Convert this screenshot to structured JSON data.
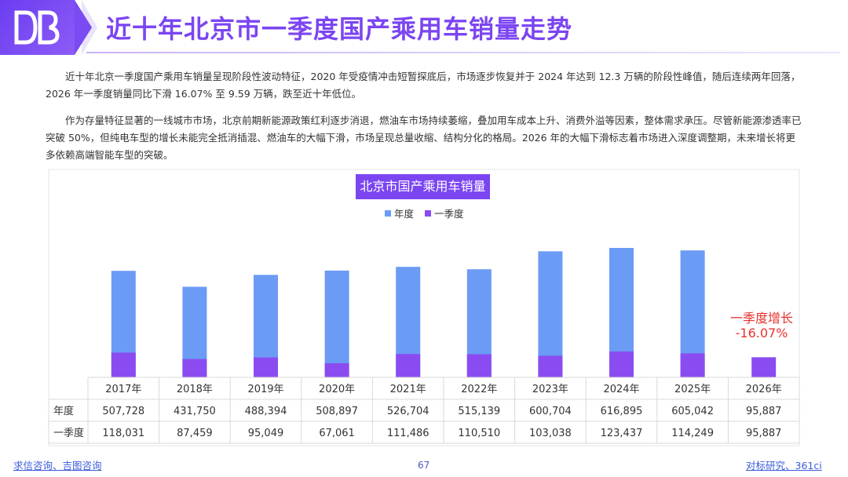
{
  "page": {
    "title": "近十年北京市一季度国产乘用车销量走势",
    "paragraph1": "近十年北京一季度国产乘用车销量呈现阶段性波动特征，2020 年受疫情冲击短暂探底后，市场逐步恢复并于 2024 年达到 12.3 万辆的阶段性峰值，随后连续两年回落，2026 年一季度销量同比下滑 16.07% 至 9.59 万辆，跌至近十年低位。",
    "paragraph2": "作为存量特征显著的一线城市市场，北京前期新能源政策红利逐步消退，燃油车市场持续萎缩，叠加用车成本上升、消费外溢等因素，整体需求承压。尽管新能源渗透率已突破 50%，但纯电车型的增长未能完全抵消插混、燃油车的大幅下滑，市场呈现总量收缩、结构分化的格局。2026 年的大幅下滑标志着市场进入深度调整期，未来增长将更多依赖高端智能车型的突破。",
    "footer_left": "求信咨询、吉图咨询",
    "page_number": "67",
    "footer_right": "对标研究、361ci",
    "logo_icon": "db-logo-icon"
  },
  "chart_data": {
    "type": "bar",
    "title": "北京市国产乘用车销量",
    "categories": [
      "2017年",
      "2018年",
      "2019年",
      "2020年",
      "2021年",
      "2022年",
      "2023年",
      "2024年",
      "2025年",
      "2026年"
    ],
    "series": [
      {
        "name": "年度",
        "color": "#6b9bf5",
        "values": [
          507728,
          431750,
          488394,
          508897,
          526704,
          515139,
          600704,
          616895,
          605042,
          95887
        ],
        "display": [
          "507,728",
          "431,750",
          "488,394",
          "508,897",
          "526,704",
          "515,139",
          "600,704",
          "616,895",
          "605,042",
          "95,887"
        ]
      },
      {
        "name": "一季度",
        "color": "#8a4cf0",
        "values": [
          118031,
          87459,
          95049,
          67061,
          111486,
          110510,
          103038,
          123437,
          114249,
          95887
        ],
        "display": [
          "118,031",
          "87,459",
          "95,049",
          "67,061",
          "111,486",
          "110,510",
          "103,038",
          "123,437",
          "114,249",
          "95,887"
        ]
      }
    ],
    "stacked": false,
    "overlay": true,
    "legend_position": "top-center",
    "grid": false,
    "annotation": {
      "line1": "一季度增长",
      "line2": "-16.07%",
      "color": "#e8312c"
    }
  }
}
